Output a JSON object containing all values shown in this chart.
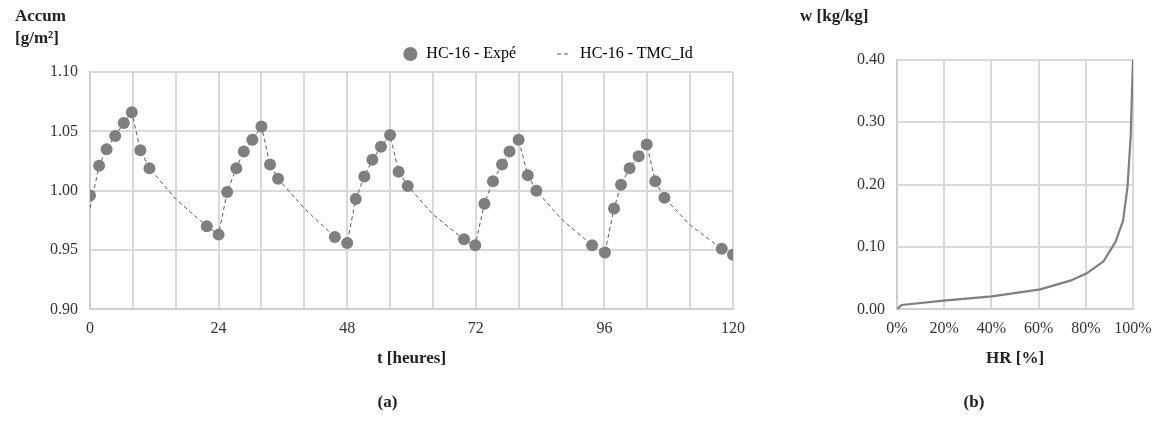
{
  "chart_data": [
    {
      "type": "scatter",
      "ylabel": "Accum [g/m²]",
      "xlabel": "t [heures]",
      "annotations": [
        "(a)"
      ],
      "legend": "top",
      "grid": true,
      "xlim": [
        0,
        120
      ],
      "xticks": [
        0,
        {
          "value": 8,
          "label": null
        },
        {
          "value": 16,
          "label": null
        },
        24,
        {
          "value": 32,
          "label": null
        },
        {
          "value": 40,
          "label": null
        },
        48,
        {
          "value": 56,
          "label": null
        },
        {
          "value": 64,
          "label": null
        },
        72,
        {
          "value": 80,
          "label": null
        },
        {
          "value": 88,
          "label": null
        },
        96,
        {
          "value": 104,
          "label": null
        },
        {
          "value": 112,
          "label": null
        },
        120
      ],
      "ylim": [
        0.9,
        1.1
      ],
      "yticks": [
        {
          "value": 0.9,
          "label": "0.90"
        },
        {
          "value": 0.95,
          "label": "0.95"
        },
        {
          "value": 1.0,
          "label": "1.00"
        },
        {
          "value": 1.05,
          "label": "1.05"
        },
        {
          "value": 1.1,
          "label": "1.10"
        }
      ],
      "series": [
        {
          "name": "HC-16 - Expé",
          "marker": "circle",
          "color": "#7f7f7f",
          "x": [
            0,
            1.7,
            3.1,
            4.7,
            6.3,
            7.8,
            9.4,
            11.1,
            21.8,
            24,
            25.6,
            27.3,
            28.7,
            30.3,
            32,
            33.6,
            35.1,
            45.7,
            48,
            49.6,
            51.2,
            52.7,
            54.3,
            56,
            57.6,
            59.3,
            69.8,
            71.9,
            73.6,
            75.2,
            76.9,
            78.3,
            80,
            81.7,
            83.3,
            93.7,
            96.1,
            97.8,
            99.1,
            100.7,
            102.4,
            103.9,
            105.5,
            107.2,
            117.9,
            120
          ],
          "values": [
            0.996,
            1.021,
            1.035,
            1.046,
            1.057,
            1.066,
            1.034,
            1.019,
            0.97,
            0.963,
            0.999,
            1.019,
            1.033,
            1.043,
            1.054,
            1.022,
            1.01,
            0.961,
            0.956,
            0.993,
            1.012,
            1.026,
            1.037,
            1.047,
            1.016,
            1.004,
            0.959,
            0.954,
            0.989,
            1.008,
            1.022,
            1.033,
            1.043,
            1.013,
            1.0,
            0.954,
            0.948,
            0.985,
            1.005,
            1.019,
            1.029,
            1.039,
            1.008,
            0.994,
            0.951,
            0.946
          ]
        },
        {
          "name": "HC-16 - TMC_Id",
          "type": "line",
          "line_style": "dashed",
          "marker": "none",
          "color": "#595959",
          "x": [
            0,
            1.7,
            3.1,
            4.7,
            6.3,
            7.8,
            9.4,
            11.1,
            16,
            21.8,
            24,
            25.6,
            27.3,
            28.7,
            30.3,
            32,
            33.6,
            35.1,
            40,
            45.7,
            48,
            49.6,
            51.2,
            52.7,
            54.3,
            56,
            57.6,
            59.3,
            64,
            69.8,
            71.9,
            73.6,
            75.2,
            76.9,
            78.3,
            80,
            81.7,
            83.3,
            88,
            93.7,
            96.1,
            97.8,
            99.1,
            100.7,
            102.4,
            103.9,
            105.5,
            107.2,
            112,
            117.9,
            120
          ],
          "values": [
            0.985,
            1.021,
            1.035,
            1.046,
            1.057,
            1.066,
            1.034,
            1.019,
            0.993,
            0.97,
            0.963,
            0.999,
            1.019,
            1.033,
            1.043,
            1.054,
            1.022,
            1.01,
            0.985,
            0.961,
            0.956,
            0.993,
            1.012,
            1.026,
            1.037,
            1.047,
            1.016,
            1.004,
            0.98,
            0.959,
            0.954,
            0.989,
            1.008,
            1.022,
            1.033,
            1.043,
            1.013,
            1.0,
            0.976,
            0.954,
            0.948,
            0.985,
            1.005,
            1.019,
            1.029,
            1.039,
            1.008,
            0.994,
            0.971,
            0.951,
            0.946
          ]
        }
      ]
    },
    {
      "type": "line",
      "ylabel": "w [kg/kg]",
      "xlabel": "HR [%]",
      "annotations": [
        "(b)"
      ],
      "grid": true,
      "marker": "none",
      "xlim": [
        0,
        100
      ],
      "xticks": [
        {
          "value": 0,
          "label": "0%"
        },
        {
          "value": 20,
          "label": "20%"
        },
        {
          "value": 40,
          "label": "40%"
        },
        {
          "value": 60,
          "label": "60%"
        },
        {
          "value": 80,
          "label": "80%"
        },
        {
          "value": 100,
          "label": "100%"
        }
      ],
      "ylim": [
        0,
        0.4
      ],
      "yticks": [
        {
          "value": 0,
          "label": "0.00"
        },
        {
          "value": 0.1,
          "label": "0.10"
        },
        {
          "value": 0.2,
          "label": "0.20"
        },
        {
          "value": 0.3,
          "label": "0.30"
        },
        {
          "value": 0.4,
          "label": "0.40"
        }
      ],
      "series": [
        {
          "color": "#7f7f7f",
          "x": [
            0,
            1.9,
            19.8,
            40.2,
            60.7,
            73.4,
            80.5,
            87.5,
            92.6,
            95.8,
            97.7,
            99,
            100
          ],
          "values": [
            0,
            0.007,
            0.014,
            0.021,
            0.032,
            0.046,
            0.058,
            0.077,
            0.108,
            0.142,
            0.197,
            0.276,
            0.4
          ]
        }
      ]
    }
  ]
}
